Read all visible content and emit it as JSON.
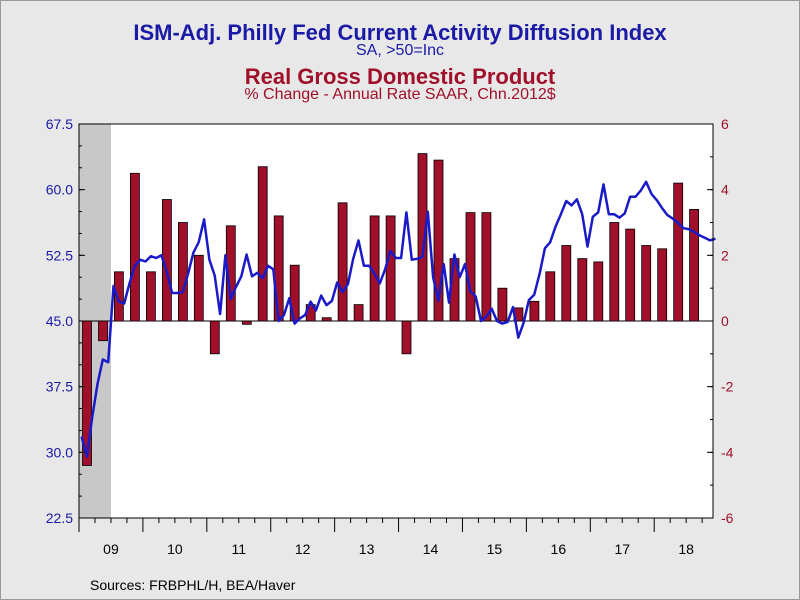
{
  "chart_data": {
    "type": "bar+line",
    "titles": {
      "line_title": "ISM-Adj. Philly Fed Current Activity Diffusion Index",
      "line_subtitle": "SA, >50=Inc",
      "bar_title": "Real Gross Domestic Product",
      "bar_subtitle": "% Change - Annual Rate     SAAR, Chn.2012$"
    },
    "x_ticks": [
      "09",
      "10",
      "11",
      "12",
      "13",
      "14",
      "15",
      "16",
      "17",
      "18"
    ],
    "y_left": {
      "ticks": [
        "67.5",
        "60.0",
        "52.5",
        "45.0",
        "37.5",
        "30.0",
        "22.5"
      ],
      "min": 22.5,
      "max": 67.5,
      "color": "#1a1aa6"
    },
    "y_right": {
      "ticks": [
        "6",
        "4",
        "2",
        "0",
        "-2",
        "-4",
        "-6"
      ],
      "min": -6,
      "max": 6,
      "color": "#a0102a"
    },
    "recession_shading": {
      "start": 2009.0,
      "end": 2009.5
    },
    "gdp_bars": {
      "name": "Real Gross Domestic Product",
      "color": "#a0102a",
      "axis": "right",
      "x": [
        2009.0,
        2009.25,
        2009.5,
        2009.75,
        2010.0,
        2010.25,
        2010.5,
        2010.75,
        2011.0,
        2011.25,
        2011.5,
        2011.75,
        2012.0,
        2012.25,
        2012.5,
        2012.75,
        2013.0,
        2013.25,
        2013.5,
        2013.75,
        2014.0,
        2014.25,
        2014.5,
        2014.75,
        2015.0,
        2015.25,
        2015.5,
        2015.75,
        2016.0,
        2016.25,
        2016.5,
        2016.75,
        2017.0,
        2017.25,
        2017.5,
        2017.75,
        2018.0,
        2018.25,
        2018.5
      ],
      "values": [
        -4.4,
        -0.6,
        1.5,
        4.5,
        1.5,
        3.7,
        3.0,
        2.0,
        -1.0,
        2.9,
        -0.1,
        4.7,
        3.2,
        1.7,
        0.5,
        0.1,
        3.6,
        0.5,
        3.2,
        3.2,
        -1.0,
        5.1,
        4.9,
        1.9,
        3.3,
        3.3,
        1.0,
        0.4,
        0.6,
        1.5,
        2.3,
        1.9,
        1.8,
        3.0,
        2.8,
        2.3,
        2.2,
        4.2,
        3.4
      ]
    },
    "philly_line": {
      "name": "ISM-Adj. Philly Fed Current Activity Diffusion Index",
      "color": "#1a1ac8",
      "axis": "left",
      "x": [
        2009.0,
        2009.083,
        2009.167,
        2009.25,
        2009.333,
        2009.417,
        2009.5,
        2009.583,
        2009.667,
        2009.75,
        2009.833,
        2009.917,
        2010.0,
        2010.083,
        2010.167,
        2010.25,
        2010.333,
        2010.417,
        2010.5,
        2010.583,
        2010.667,
        2010.75,
        2010.833,
        2010.917,
        2011.0,
        2011.083,
        2011.167,
        2011.25,
        2011.333,
        2011.417,
        2011.5,
        2011.583,
        2011.667,
        2011.75,
        2011.833,
        2011.917,
        2012.0,
        2012.083,
        2012.167,
        2012.25,
        2012.333,
        2012.417,
        2012.5,
        2012.583,
        2012.667,
        2012.75,
        2012.833,
        2012.917,
        2013.0,
        2013.083,
        2013.167,
        2013.25,
        2013.333,
        2013.417,
        2013.5,
        2013.583,
        2013.667,
        2013.75,
        2013.833,
        2013.917,
        2014.0,
        2014.083,
        2014.167,
        2014.25,
        2014.333,
        2014.417,
        2014.5,
        2014.583,
        2014.667,
        2014.75,
        2014.833,
        2014.917,
        2015.0,
        2015.083,
        2015.167,
        2015.25,
        2015.333,
        2015.417,
        2015.5,
        2015.583,
        2015.667,
        2015.75,
        2015.833,
        2015.917,
        2016.0,
        2016.083,
        2016.167,
        2016.25,
        2016.333,
        2016.417,
        2016.5,
        2016.583,
        2016.667,
        2016.75,
        2016.833,
        2016.917,
        2017.0,
        2017.083,
        2017.167,
        2017.25,
        2017.333,
        2017.417,
        2017.5,
        2017.583,
        2017.667,
        2017.75,
        2017.833,
        2017.917,
        2018.0,
        2018.083,
        2018.167,
        2018.25,
        2018.333,
        2018.417,
        2018.5,
        2018.583,
        2018.667,
        2018.75,
        2018.833,
        2018.917
      ],
      "values": [
        31.8,
        29.5,
        34.0,
        37.8,
        40.6,
        40.3,
        49.0,
        47.2,
        47.0,
        49.3,
        51.3,
        52.0,
        51.8,
        52.4,
        52.2,
        52.5,
        50.6,
        48.2,
        48.2,
        48.3,
        50.4,
        52.8,
        54.0,
        56.6,
        52.0,
        50.2,
        45.8,
        52.5,
        47.5,
        48.9,
        50.1,
        52.6,
        50.1,
        50.5,
        49.9,
        51.3,
        50.9,
        45.0,
        45.7,
        47.6,
        44.7,
        45.3,
        45.7,
        47.2,
        46.2,
        47.9,
        46.8,
        47.3,
        49.4,
        48.3,
        49.2,
        52.1,
        54.2,
        51.3,
        51.3,
        50.4,
        49.3,
        50.9,
        53.0,
        52.2,
        52.2,
        57.4,
        52.0,
        52.1,
        52.3,
        57.5,
        50.0,
        47.3,
        51.5,
        47.1,
        52.6,
        50.0,
        51.5,
        48.4,
        47.8,
        45.0,
        45.5,
        46.4,
        45.0,
        44.7,
        44.9,
        46.6,
        43.1,
        44.8,
        47.4,
        48.0,
        50.4,
        53.3,
        54.0,
        55.8,
        57.2,
        58.7,
        58.2,
        58.9,
        57.2,
        53.5,
        56.9,
        57.4,
        60.6,
        57.2,
        57.2,
        56.8,
        57.3,
        59.2,
        59.2,
        59.9,
        60.9,
        59.5,
        58.8,
        57.9,
        57.1,
        56.7,
        56.2,
        55.6,
        55.5,
        55.2,
        54.8,
        54.5,
        54.2,
        54.4
      ]
    }
  },
  "footer": {
    "sources": "Sources:  FRBPHL/H, BEA/Haver"
  }
}
